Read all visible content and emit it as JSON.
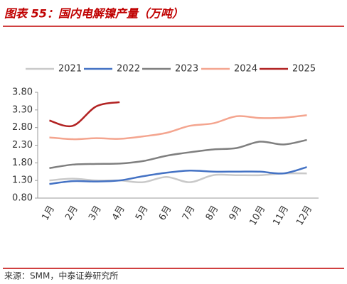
{
  "chart_data": {
    "type": "line",
    "title": "图表 55：国内电解镍产量（万吨）",
    "source": "来源：SMM，中泰证券研究所",
    "categories": [
      "1月",
      "2月",
      "3月",
      "4月",
      "5月",
      "6月",
      "7月",
      "8月",
      "9月",
      "10月",
      "11月",
      "12月"
    ],
    "series": [
      {
        "name": "2021",
        "color": "#c9c9c9",
        "values": [
          1.3,
          1.35,
          1.3,
          1.3,
          1.25,
          1.4,
          1.25,
          1.45,
          1.45,
          1.45,
          1.5,
          1.5
        ]
      },
      {
        "name": "2022",
        "color": "#4472c4",
        "values": [
          1.2,
          1.28,
          1.27,
          1.3,
          1.42,
          1.52,
          1.58,
          1.55,
          1.55,
          1.55,
          1.5,
          1.68
        ]
      },
      {
        "name": "2023",
        "color": "#7f7f7f",
        "values": [
          1.65,
          1.75,
          1.77,
          1.78,
          1.85,
          2.0,
          2.1,
          2.18,
          2.22,
          2.4,
          2.32,
          2.45
        ]
      },
      {
        "name": "2024",
        "color": "#f4a58f",
        "values": [
          2.52,
          2.47,
          2.5,
          2.48,
          2.55,
          2.65,
          2.85,
          2.92,
          3.12,
          3.07,
          3.08,
          3.15
        ]
      },
      {
        "name": "2025",
        "color": "#b22222",
        "values": [
          3.0,
          2.85,
          3.4,
          3.52,
          null,
          null,
          null,
          null,
          null,
          null,
          null,
          null
        ]
      }
    ],
    "ylim": [
      0.8,
      3.8
    ],
    "yticks": [
      {
        "value": 0.8,
        "label": "0.80"
      },
      {
        "value": 1.3,
        "label": "1.30"
      },
      {
        "value": 1.8,
        "label": "1.80"
      },
      {
        "value": 2.3,
        "label": "2.30"
      },
      {
        "value": 2.8,
        "label": "2.80"
      },
      {
        "value": 3.3,
        "label": "3.30"
      },
      {
        "value": 3.8,
        "label": "3.80"
      }
    ],
    "legend": "top",
    "grid": false
  }
}
